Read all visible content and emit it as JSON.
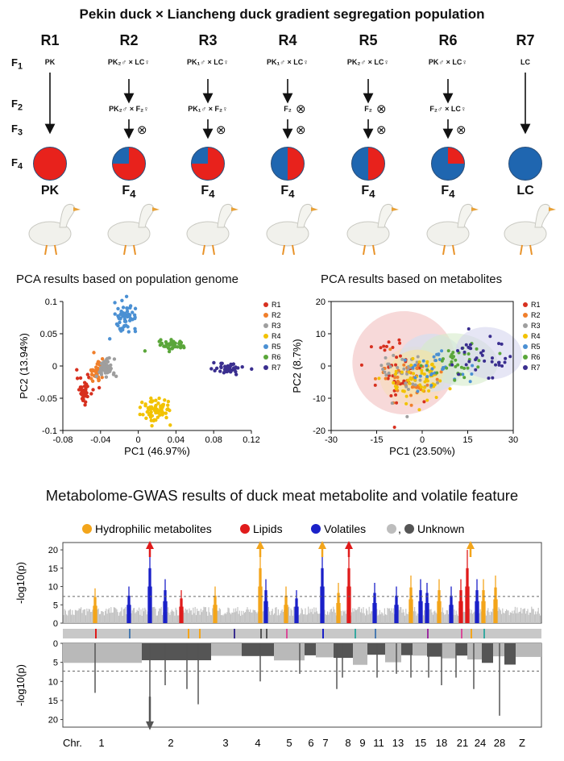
{
  "title": "Pekin duck × Liancheng duck gradient segregation population",
  "rows": [
    "R1",
    "R2",
    "R3",
    "R4",
    "R5",
    "R6",
    "R7"
  ],
  "gen_labels": {
    "f1": "F",
    "f2": "F",
    "f3": "F",
    "f4": "F",
    "sub1": "1",
    "sub2": "2",
    "sub3": "3",
    "sub4": "4"
  },
  "f1_crosses": [
    "PK",
    "PK₂♂ × LC♀",
    "PK₁♂ × LC♀",
    "PK₁♂ × LC♀",
    "PK₂♂ × LC♀",
    "PK♂ × LC♀",
    "LC"
  ],
  "f2_crosses": [
    "",
    "PK₂♂ × F₂♀",
    "PK₁♂ × F₂♀",
    "F₂",
    "F₂",
    "F₂♂ × LC♀",
    ""
  ],
  "selfing": "⊗",
  "pie_pk_fraction": [
    1.0,
    0.75,
    0.75,
    0.5,
    0.5,
    0.25,
    0.0
  ],
  "colors": {
    "pk": "#e8221c",
    "lc": "#1f66b0",
    "hydro": "#f3a51b",
    "lipid": "#e01b1b",
    "volatile": "#1b21c8",
    "unknown_light": "#bdbdbd",
    "unknown_dark": "#555555"
  },
  "breed_names": [
    "PK",
    "F4",
    "F4",
    "F4",
    "F4",
    "F4",
    "LC"
  ],
  "breed_sub": {
    "base": "F",
    "sub": "4"
  },
  "pca_genome": {
    "title": "PCA results based on population genome",
    "xlabel": "PC1 (46.97%)",
    "ylabel": "PC2 (13.94%)",
    "xticks": [
      "-0.08",
      "-0.04",
      "0",
      "0.04",
      "0.08",
      "0.12"
    ],
    "yticks": [
      "0.1",
      "0.05",
      "0",
      "-0.05",
      "-0.1"
    ]
  },
  "pca_metab": {
    "title": "PCA results based on metabolites",
    "xlabel": "PC1 (23.50%)",
    "ylabel": "PC2 (8.7%)",
    "xticks": [
      "-30",
      "-15",
      "0",
      "15",
      "30"
    ],
    "yticks": [
      "20",
      "10",
      "0",
      "-10",
      "-20"
    ]
  },
  "legend_rows": [
    "R1",
    "R2",
    "R3",
    "R4",
    "R5",
    "R6",
    "R7"
  ],
  "legend_colors": [
    "#d7301f",
    "#f07f2b",
    "#9e9e9e",
    "#f2c200",
    "#4b90d3",
    "#5aa63a",
    "#3a2e8f"
  ],
  "gwas": {
    "title": "Metabolome-GWAS results of duck meat metabolite and volatile feature",
    "legend": [
      "Hydrophilic metabolites",
      "Lipids",
      "Volatiles",
      "Unknown"
    ],
    "legend_sep": ",",
    "ylabel_top": "-log",
    "ylabel_sub": "10",
    "ylabel_tail": "(p)",
    "yticks_top": [
      "20",
      "15",
      "10",
      "5",
      "0"
    ],
    "yticks_bottom": [
      "0",
      "5",
      "10",
      "15",
      "20"
    ],
    "chr_label": "Chr.",
    "chromosomes": [
      "1",
      "2",
      "3",
      "4",
      "5",
      "6",
      "7",
      "8",
      "9",
      "11",
      "13",
      "15",
      "18",
      "21",
      "24",
      "28",
      "Z"
    ]
  }
}
